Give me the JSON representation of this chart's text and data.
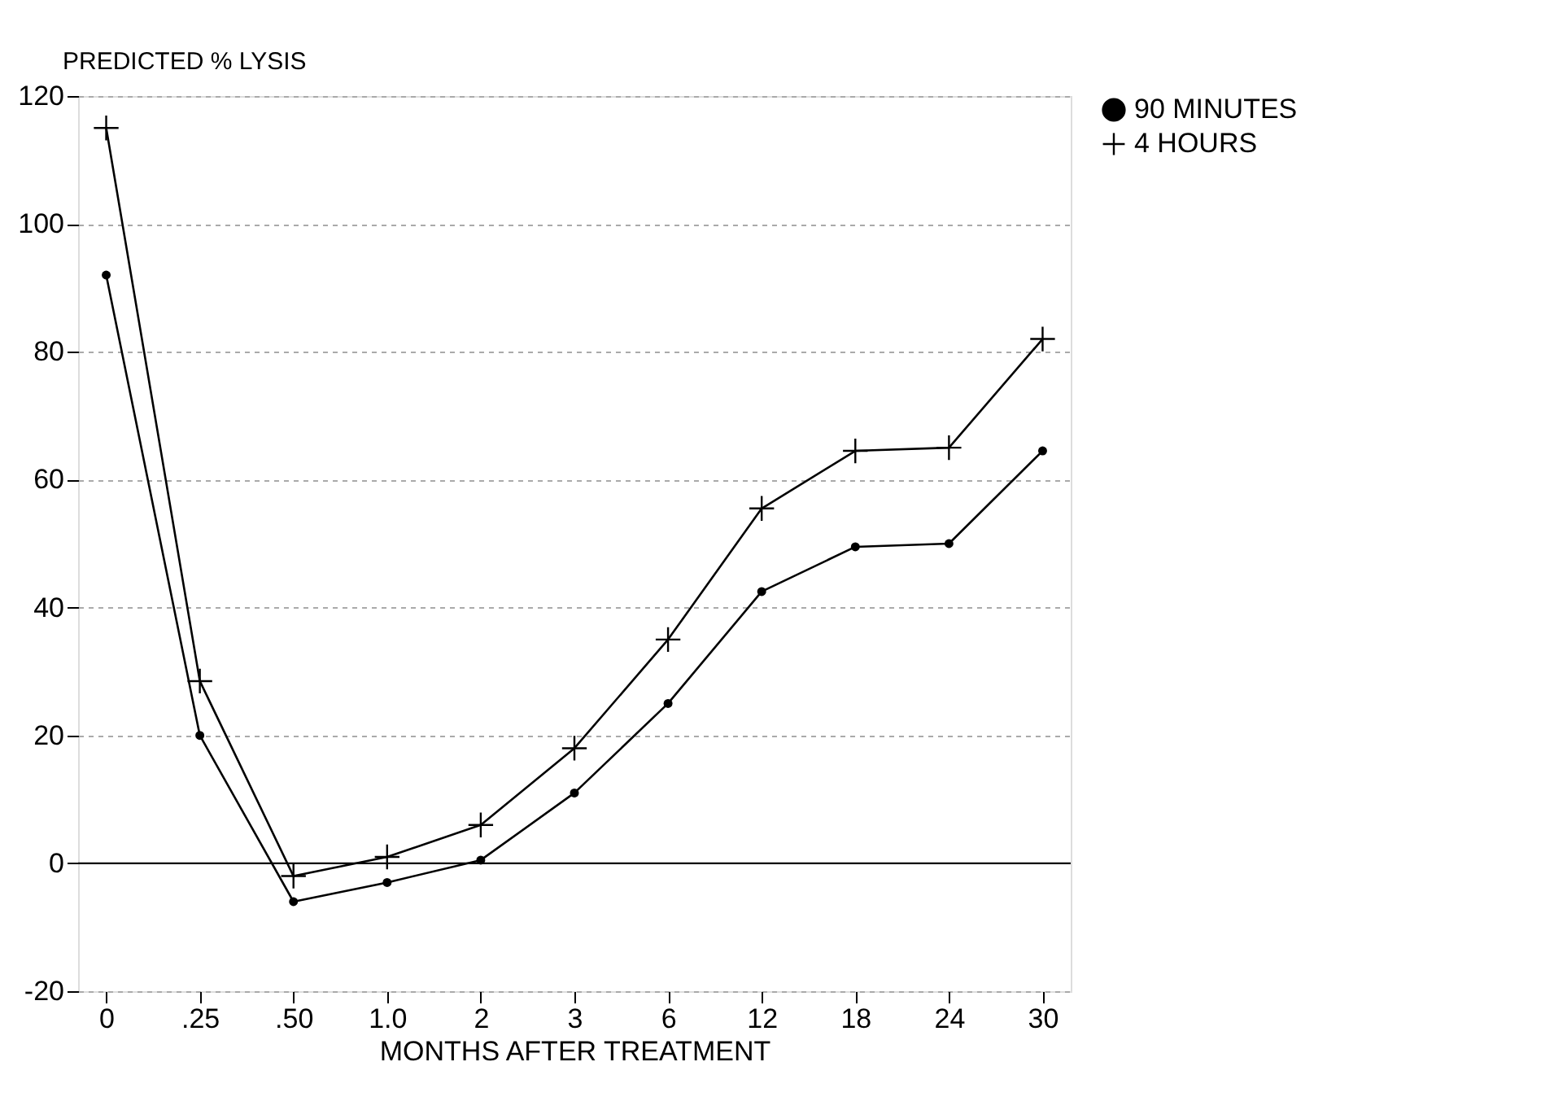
{
  "chart_data": {
    "type": "line",
    "ylabel": "PREDICTED % LYSIS",
    "xlabel": "MONTHS AFTER TREATMENT",
    "categories": [
      "0",
      ".25",
      ".50",
      "1.0",
      "2",
      "3",
      "6",
      "12",
      "18",
      "24",
      "30"
    ],
    "series": [
      {
        "name": "90 MINUTES",
        "color": "#000000",
        "marker": "circle",
        "values": [
          92,
          20,
          -6,
          -3,
          0.5,
          11,
          25,
          42.5,
          49.5,
          50,
          64.5
        ]
      },
      {
        "name": "4 HOURS",
        "color": "#000000",
        "marker": "cross",
        "values": [
          115,
          28.5,
          -2,
          1,
          6,
          18,
          35,
          55.5,
          64.5,
          65,
          82
        ]
      }
    ],
    "ylim": [
      -20,
      120
    ],
    "yticks": [
      -20,
      0,
      20,
      40,
      60,
      80,
      100,
      120
    ],
    "grid": "y",
    "legend": "right",
    "line_style": "solid",
    "ref_lines": [
      {
        "axis": "y",
        "value": 0,
        "label": null,
        "color": "#000000",
        "line_style": "solid"
      }
    ]
  }
}
